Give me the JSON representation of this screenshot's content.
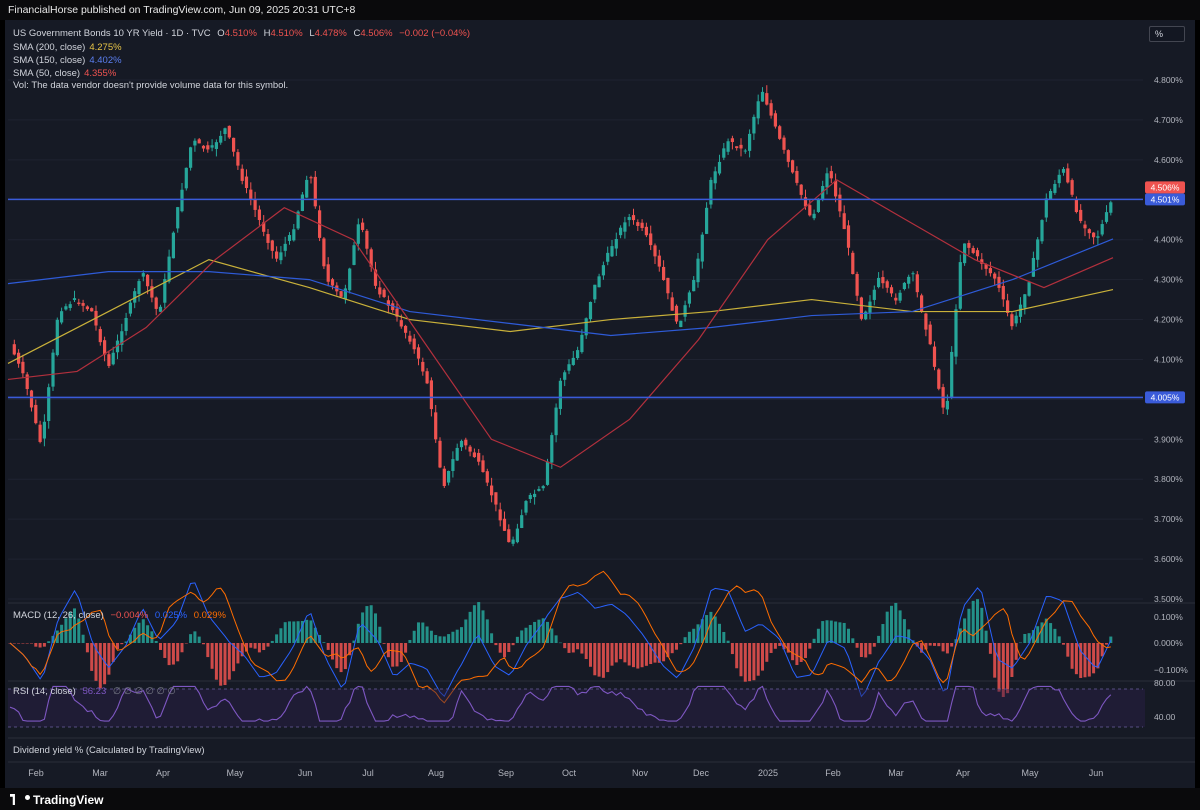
{
  "header": {
    "publisher_text": "FinancialHorse published on TradingView.com, Jun 09, 2025 20:31 UTC+8"
  },
  "scale_button": {
    "label": "%"
  },
  "legend": {
    "symbol": "US Government Bonds 10 YR Yield · 1D · TVC",
    "o_label": "O",
    "o_value": "4.510%",
    "h_label": "H",
    "h_value": "4.510%",
    "l_label": "L",
    "l_value": "4.478%",
    "c_label": "C",
    "c_value": "4.506%",
    "change": "−0.002 (−0.04%)",
    "sma200_label": "SMA (200, close)",
    "sma200_value": "4.275%",
    "sma150_label": "SMA (150, close)",
    "sma150_value": "4.402%",
    "sma50_label": "SMA (50, close)",
    "sma50_value": "4.355%",
    "vol_text": "Vol: The data vendor doesn't provide volume data for this symbol."
  },
  "macd": {
    "label": "MACD (12, 26, close)",
    "v1": "−0.004%",
    "v2": "0.025%",
    "v3": "0.029%"
  },
  "rsi": {
    "label": "RSI (14, close)",
    "value": "56.23",
    "placeholders": "∅ ∅ ∅ ∅ ∅ ∅"
  },
  "dividend": {
    "label": "Dividend yield % (Calculated by TradingView)"
  },
  "footer": {
    "logo_text": "TradingView"
  },
  "colors": {
    "bg": "#161a25",
    "up": "#26a69a",
    "down": "#ef5350",
    "sma200": "#c9b13a",
    "sma150": "#2e5bd8",
    "sma50": "#b2303d",
    "hline": "#3a5bd9",
    "macd": "#2962ff",
    "signal": "#ff6d00",
    "rsi": "#7e57c2",
    "axis_text": "#b2b5be"
  },
  "chart_data": {
    "type": "candlestick",
    "symbol": "US Government Bonds 10 YR Yield · 1D · TVC",
    "y_axis": {
      "range": [
        3.5,
        4.9
      ],
      "unit": "%",
      "ticks": [
        "3.500%",
        "3.600%",
        "3.700%",
        "3.800%",
        "3.900%",
        "4.000%",
        "4.100%",
        "4.200%",
        "4.300%",
        "4.400%",
        "4.500%",
        "4.600%",
        "4.700%",
        "4.800%"
      ]
    },
    "x_axis": {
      "ticks": [
        "Feb",
        "Mar",
        "Apr",
        "May",
        "Jun",
        "Jul",
        "Aug",
        "Sep",
        "Oct",
        "Nov",
        "Dec",
        "2025",
        "Feb",
        "Mar",
        "Apr",
        "May",
        "Jun"
      ]
    },
    "horizontal_lines": [
      {
        "value": 4.501,
        "label": "4.501%"
      },
      {
        "value": 4.005,
        "label": "4.005%"
      }
    ],
    "last_price": {
      "value": 4.506,
      "label": "4.506%"
    },
    "close_path": [
      [
        "Feb",
        4.15
      ],
      [
        "Feb",
        4.05
      ],
      [
        "Feb",
        3.88
      ],
      [
        "Mar",
        4.22
      ],
      [
        "Mar",
        4.25
      ],
      [
        "Mar",
        4.22
      ],
      [
        "Mar",
        4.08
      ],
      [
        "Apr",
        4.2
      ],
      [
        "Apr",
        4.32
      ],
      [
        "Apr",
        4.21
      ],
      [
        "Apr",
        4.45
      ],
      [
        "Apr",
        4.65
      ],
      [
        "May",
        4.62
      ],
      [
        "May",
        4.68
      ],
      [
        "May",
        4.55
      ],
      [
        "May",
        4.45
      ],
      [
        "May",
        4.35
      ],
      [
        "Jun",
        4.42
      ],
      [
        "Jun",
        4.58
      ],
      [
        "Jun",
        4.3
      ],
      [
        "Jun",
        4.25
      ],
      [
        "Jul",
        4.45
      ],
      [
        "Jul",
        4.28
      ],
      [
        "Jul",
        4.22
      ],
      [
        "Jul",
        4.15
      ],
      [
        "Aug",
        4.05
      ],
      [
        "Aug",
        3.78
      ],
      [
        "Aug",
        3.9
      ],
      [
        "Aug",
        3.85
      ],
      [
        "Sep",
        3.75
      ],
      [
        "Sep",
        3.63
      ],
      [
        "Sep",
        3.75
      ],
      [
        "Sep",
        3.78
      ],
      [
        "Oct",
        4.05
      ],
      [
        "Oct",
        4.12
      ],
      [
        "Oct",
        4.28
      ],
      [
        "Oct",
        4.38
      ],
      [
        "Nov",
        4.46
      ],
      [
        "Nov",
        4.42
      ],
      [
        "Nov",
        4.32
      ],
      [
        "Dec",
        4.18
      ],
      [
        "Dec",
        4.3
      ],
      [
        "Dec",
        4.55
      ],
      [
        "Dec",
        4.65
      ],
      [
        "2025",
        4.62
      ],
      [
        "2025",
        4.78
      ],
      [
        "2025",
        4.66
      ],
      [
        "Feb",
        4.55
      ],
      [
        "Feb",
        4.45
      ],
      [
        "Feb",
        4.58
      ],
      [
        "Feb",
        4.42
      ],
      [
        "Mar",
        4.2
      ],
      [
        "Mar",
        4.3
      ],
      [
        "Mar",
        4.25
      ],
      [
        "Mar",
        4.32
      ],
      [
        "Apr",
        4.15
      ],
      [
        "Apr",
        3.95
      ],
      [
        "Apr",
        4.4
      ],
      [
        "Apr",
        4.35
      ],
      [
        "May",
        4.3
      ],
      [
        "May",
        4.18
      ],
      [
        "May",
        4.3
      ],
      [
        "May",
        4.5
      ],
      [
        "Jun",
        4.58
      ],
      [
        "Jun",
        4.45
      ],
      [
        "Jun",
        4.4
      ],
      [
        "Jun",
        4.506
      ]
    ],
    "sma200_path": [
      [
        "Feb",
        4.09
      ],
      [
        "Apr",
        4.22
      ],
      [
        "Jul",
        4.35
      ],
      [
        "Aug",
        4.28
      ],
      [
        "Sep",
        4.2
      ],
      [
        "Oct",
        4.17
      ],
      [
        "Dec",
        4.2
      ],
      [
        "2025",
        4.22
      ],
      [
        "Feb",
        4.25
      ],
      [
        "Mar",
        4.22
      ],
      [
        "May",
        4.22
      ],
      [
        "Jun",
        4.275
      ]
    ],
    "sma150_path": [
      [
        "Feb",
        4.29
      ],
      [
        "Apr",
        4.32
      ],
      [
        "Jun",
        4.32
      ],
      [
        "Aug",
        4.3
      ],
      [
        "Sep",
        4.22
      ],
      [
        "Oct",
        4.19
      ],
      [
        "Dec",
        4.16
      ],
      [
        "2025",
        4.18
      ],
      [
        "Feb",
        4.21
      ],
      [
        "Mar",
        4.22
      ],
      [
        "May",
        4.3
      ],
      [
        "Jun",
        4.402
      ]
    ],
    "sma50_path": [
      [
        "Feb",
        4.05
      ],
      [
        "Mar",
        4.07
      ],
      [
        "Apr",
        4.18
      ],
      [
        "May",
        4.35
      ],
      [
        "Jun",
        4.48
      ],
      [
        "Jul",
        4.4
      ],
      [
        "Aug",
        4.15
      ],
      [
        "Sep",
        3.9
      ],
      [
        "Oct",
        3.83
      ],
      [
        "Nov",
        3.95
      ],
      [
        "Dec",
        4.15
      ],
      [
        "2025",
        4.4
      ],
      [
        "Feb",
        4.55
      ],
      [
        "Mar",
        4.45
      ],
      [
        "Apr",
        4.35
      ],
      [
        "May",
        4.28
      ],
      [
        "Jun",
        4.355
      ]
    ],
    "macd_pane": {
      "ticks": [
        "0.100%",
        "0.000%",
        "−0.100%"
      ],
      "range": [
        -0.14,
        0.14
      ]
    },
    "rsi_pane": {
      "ticks": [
        "80.00",
        "40.00"
      ],
      "range": [
        30,
        85
      ],
      "last": 56.23
    }
  }
}
